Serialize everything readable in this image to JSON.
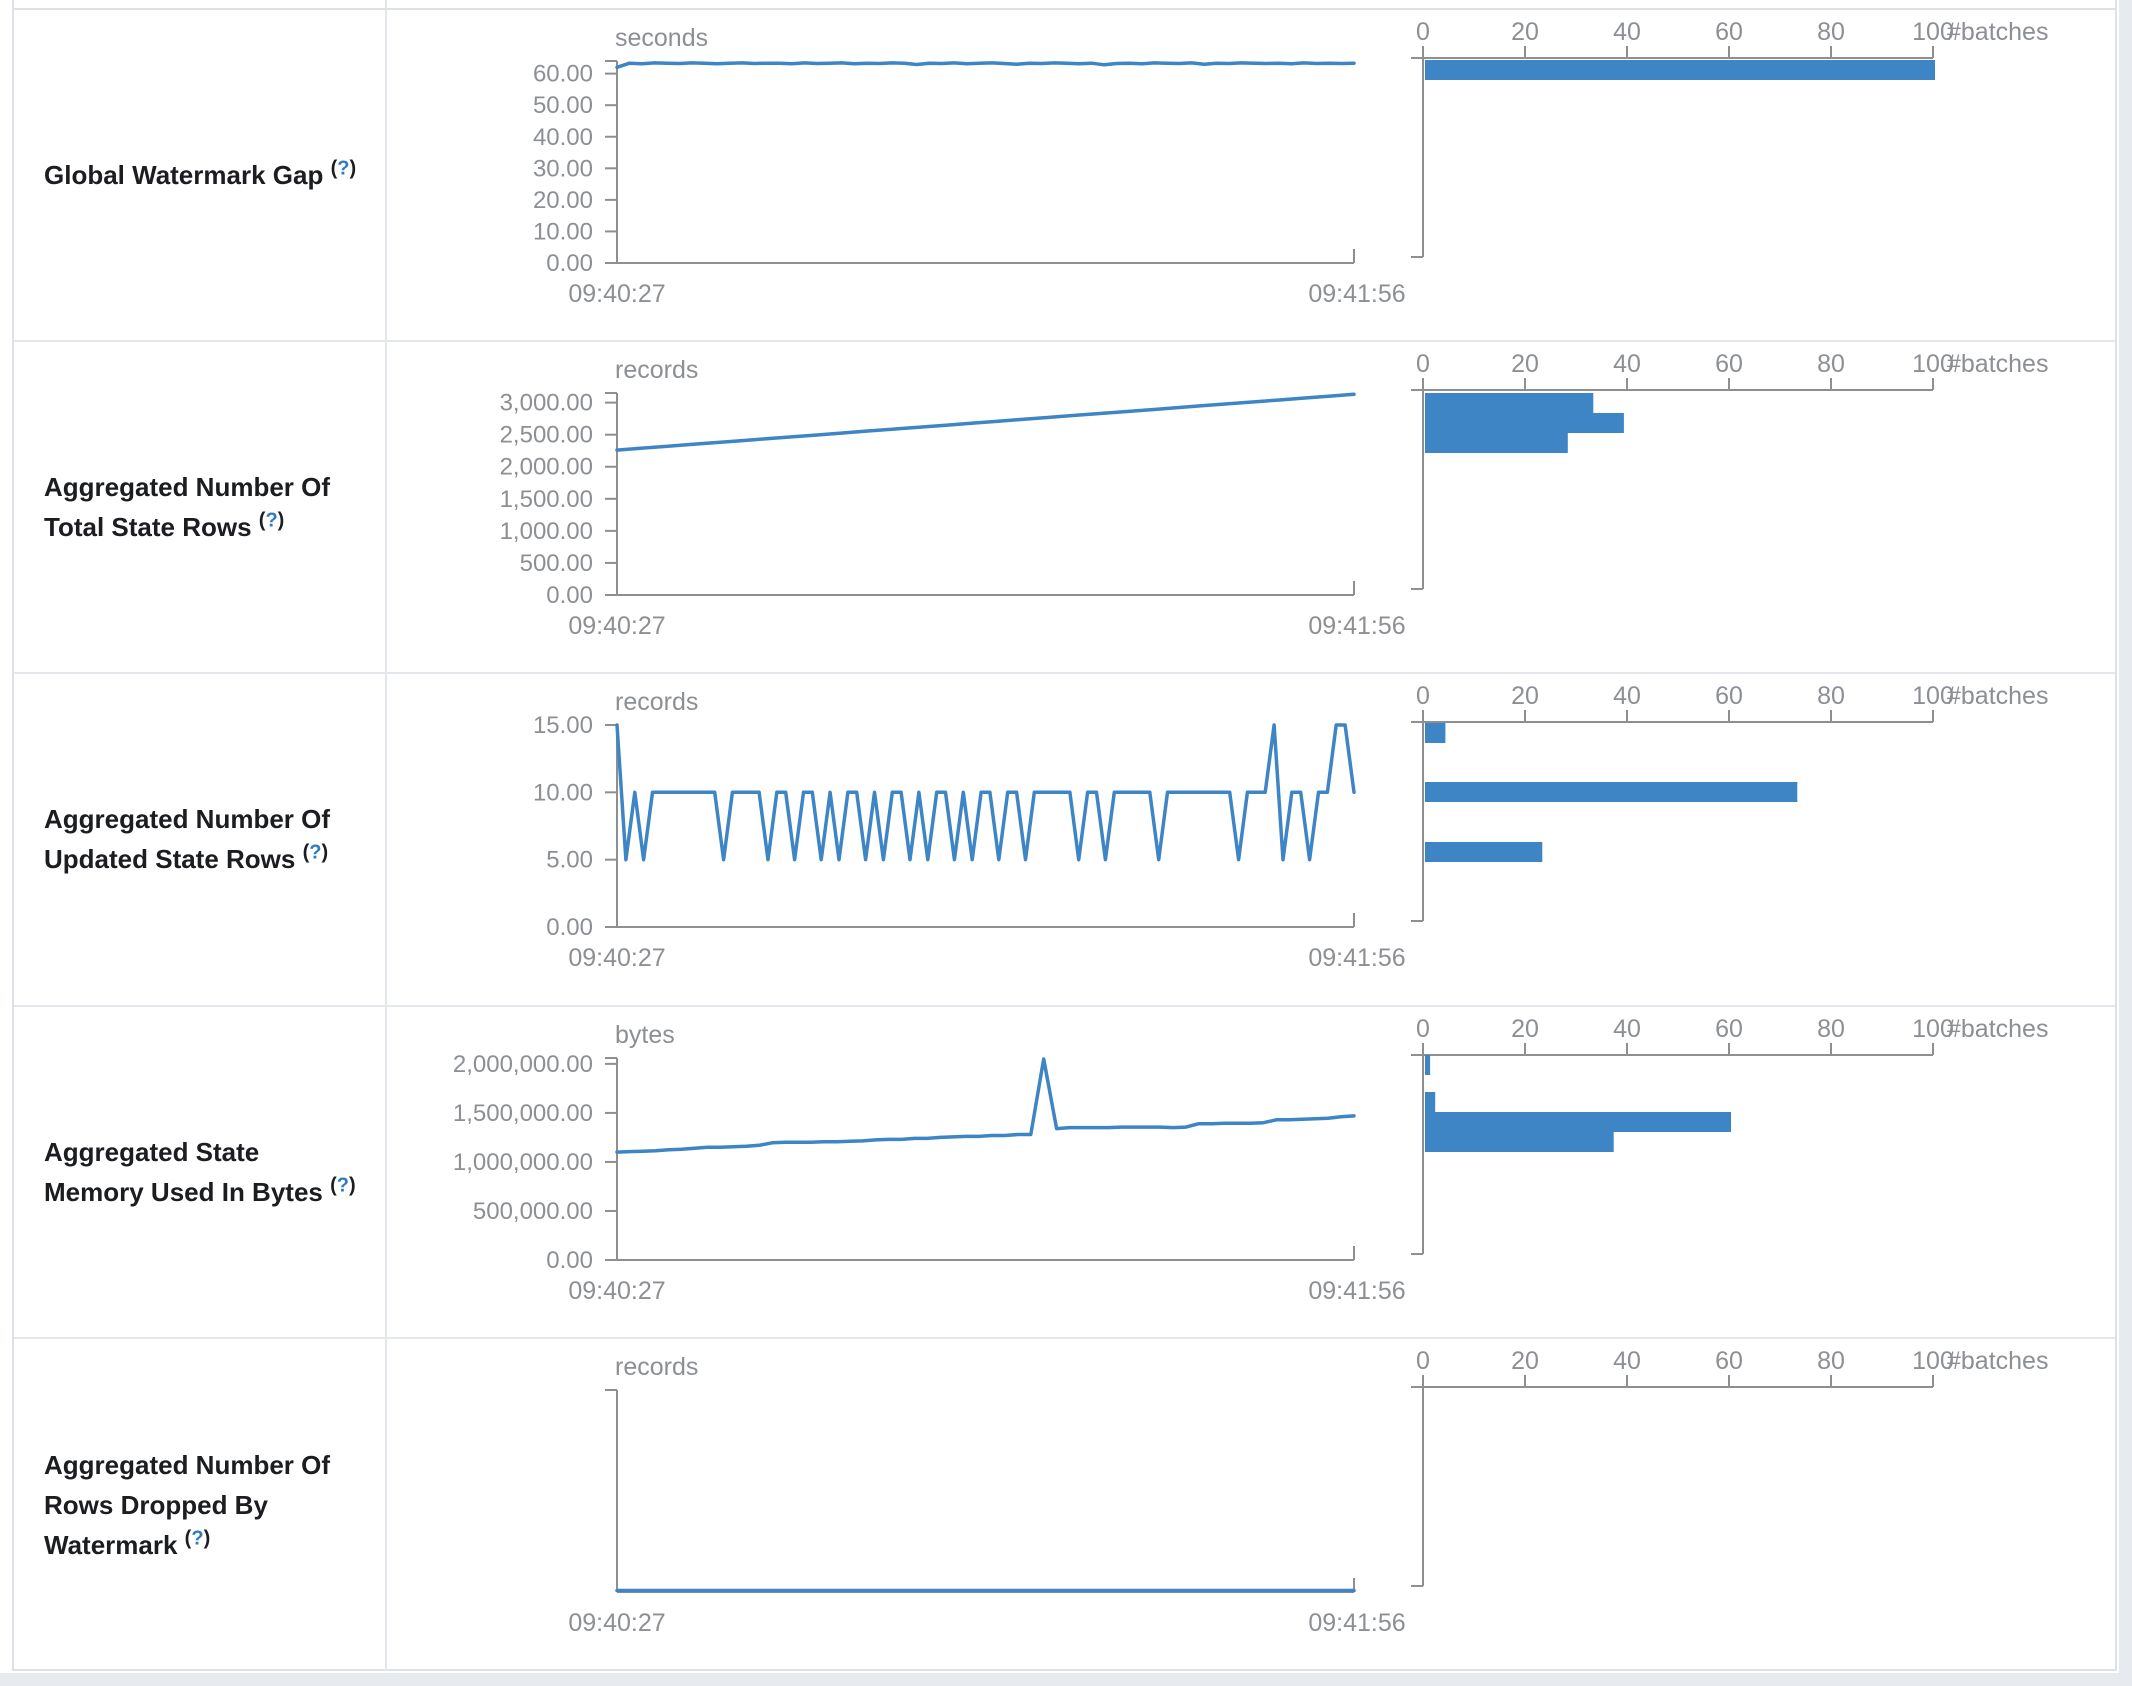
{
  "shared": {
    "help": {
      "open": "(",
      "q": "?",
      "close": ")"
    },
    "x_axis_labels": [
      "09:40:27",
      "09:41:56"
    ],
    "hist_ticks": [
      0,
      20,
      40,
      60,
      80,
      100
    ],
    "batches_label": "#batches",
    "colors": {
      "accent": "#3e85c6",
      "axis_line": "#8f8f8f",
      "tick_text": "#8c8f93"
    }
  },
  "chart_data": [
    {
      "type": "line",
      "label": "Global Watermark Gap",
      "timeline": {
        "unit": "seconds",
        "y_max": 64,
        "y_ticks": [
          {
            "label": "60.00",
            "value": 60
          },
          {
            "label": "50.00",
            "value": 50
          },
          {
            "label": "40.00",
            "value": 40
          },
          {
            "label": "30.00",
            "value": 30
          },
          {
            "label": "20.00",
            "value": 20
          },
          {
            "label": "10.00",
            "value": 10
          },
          {
            "label": "0.00",
            "value": 0
          }
        ],
        "x_labels": [
          "09:40:27",
          "09:41:56"
        ],
        "values": [
          62,
          63.3,
          63.1,
          63.4,
          63.3,
          63.2,
          63.4,
          63.3,
          63.1,
          63.3,
          63.4,
          63.2,
          63.3,
          63.3,
          63.1,
          63.4,
          63.2,
          63.3,
          63.4,
          63.1,
          63.3,
          63.2,
          63.4,
          63.3,
          62.9,
          63.3,
          63.2,
          63.4,
          63.1,
          63.3,
          63.4,
          63.2,
          63,
          63.3,
          63.2,
          63.4,
          63.3,
          63.1,
          63.3,
          62.8,
          63.2,
          63.3,
          63.1,
          63.4,
          63.3,
          63.2,
          63.4,
          63,
          63.3,
          63.2,
          63.4,
          63.3,
          63.2,
          63.3,
          63.1,
          63.4,
          63.2,
          63.3,
          63.2,
          63.3
        ]
      },
      "histogram": {
        "axis_label": "#batches",
        "x_ticks": [
          0,
          20,
          40,
          60,
          80,
          100
        ],
        "bars": [
          {
            "count": 100,
            "y": 50
          }
        ]
      }
    },
    {
      "type": "line",
      "label": "Aggregated Number Of Total State Rows",
      "timeline": {
        "unit": "records",
        "y_max": 3150,
        "y_ticks": [
          {
            "label": "3,000.00",
            "value": 3000
          },
          {
            "label": "2,500.00",
            "value": 2500
          },
          {
            "label": "2,000.00",
            "value": 2000
          },
          {
            "label": "1,500.00",
            "value": 1500
          },
          {
            "label": "1,000.00",
            "value": 1000
          },
          {
            "label": "500.00",
            "value": 500
          },
          {
            "label": "0.00",
            "value": 0
          }
        ],
        "x_labels": [
          "09:40:27",
          "09:41:56"
        ],
        "values": [
          2260,
          2290,
          2320,
          2350,
          2380,
          2410,
          2440,
          2470,
          2500,
          2530,
          2560,
          2590,
          2620,
          2650,
          2680,
          2710,
          2740,
          2770,
          2800,
          2830,
          2860,
          2890,
          2920,
          2950,
          2980,
          3010,
          3040,
          3070,
          3100,
          3130
        ]
      },
      "histogram": {
        "axis_label": "#batches",
        "x_ticks": [
          0,
          20,
          40,
          60,
          80,
          100
        ],
        "bars": [
          {
            "count": 33,
            "y": 51
          },
          {
            "count": 39,
            "y": 71
          },
          {
            "count": 28,
            "y": 91
          }
        ]
      }
    },
    {
      "type": "line",
      "label": "Aggregated Number Of Updated State Rows",
      "timeline": {
        "unit": "records",
        "y_max": 15,
        "y_ticks": [
          {
            "label": "15.00",
            "value": 15
          },
          {
            "label": "10.00",
            "value": 10
          },
          {
            "label": "5.00",
            "value": 5
          },
          {
            "label": "0.00",
            "value": 0
          }
        ],
        "x_labels": [
          "09:40:27",
          "09:41:56"
        ],
        "values": [
          15,
          5,
          10,
          5,
          10,
          10,
          10,
          10,
          10,
          10,
          10,
          10,
          5,
          10,
          10,
          10,
          10,
          5,
          10,
          10,
          5,
          10,
          10,
          5,
          10,
          5,
          10,
          10,
          5,
          10,
          5,
          10,
          10,
          5,
          10,
          5,
          10,
          10,
          5,
          10,
          5,
          10,
          10,
          5,
          10,
          10,
          5,
          10,
          10,
          10,
          10,
          10,
          5,
          10,
          10,
          5,
          10,
          10,
          10,
          10,
          10,
          5,
          10,
          10,
          10,
          10,
          10,
          10,
          10,
          10,
          5,
          10,
          10,
          10,
          15,
          5,
          10,
          10,
          5,
          10,
          10,
          15,
          15,
          10
        ]
      },
      "histogram": {
        "axis_label": "#batches",
        "x_ticks": [
          0,
          20,
          40,
          60,
          80,
          100
        ],
        "bars": [
          {
            "count": 4,
            "y": 49
          },
          {
            "count": 73,
            "y": 108
          },
          {
            "count": 23,
            "y": 168
          }
        ]
      }
    },
    {
      "type": "line",
      "label": "Aggregated State Memory Used In Bytes",
      "timeline": {
        "unit": "bytes",
        "y_max": 2060000,
        "y_ticks": [
          {
            "label": "2,000,000.00",
            "value": 2000000
          },
          {
            "label": "1,500,000.00",
            "value": 1500000
          },
          {
            "label": "1,000,000.00",
            "value": 1000000
          },
          {
            "label": "500,000.00",
            "value": 500000
          },
          {
            "label": "0.00",
            "value": 0
          }
        ],
        "x_labels": [
          "09:40:27",
          "09:41:56"
        ],
        "values": [
          1100000,
          1105000,
          1110000,
          1115000,
          1125000,
          1130000,
          1140000,
          1150000,
          1150000,
          1155000,
          1160000,
          1170000,
          1195000,
          1200000,
          1200000,
          1200000,
          1205000,
          1205000,
          1210000,
          1215000,
          1225000,
          1230000,
          1230000,
          1240000,
          1240000,
          1250000,
          1255000,
          1260000,
          1260000,
          1270000,
          1270000,
          1280000,
          1280000,
          2050000,
          1340000,
          1350000,
          1350000,
          1350000,
          1350000,
          1355000,
          1355000,
          1355000,
          1355000,
          1350000,
          1355000,
          1390000,
          1390000,
          1395000,
          1395000,
          1395000,
          1400000,
          1430000,
          1430000,
          1435000,
          1440000,
          1445000,
          1460000,
          1470000
        ]
      },
      "histogram": {
        "axis_label": "#batches",
        "x_ticks": [
          0,
          20,
          40,
          60,
          80,
          100
        ],
        "bars": [
          {
            "count": 1,
            "y": 48
          },
          {
            "count": 2,
            "y": 85
          },
          {
            "count": 60,
            "y": 105
          },
          {
            "count": 37,
            "y": 125
          }
        ]
      }
    },
    {
      "type": "line",
      "label": "Aggregated Number Of Rows Dropped By Watermark",
      "timeline": {
        "unit": "records",
        "y_max": 1,
        "y_ticks": [],
        "x_labels": [
          "09:40:27",
          "09:41:56"
        ],
        "values": [
          0,
          0,
          0,
          0,
          0,
          0,
          0,
          0,
          0,
          0
        ]
      },
      "histogram": {
        "axis_label": "#batches",
        "x_ticks": [
          0,
          20,
          40,
          60,
          80,
          100
        ],
        "bars": []
      }
    }
  ]
}
